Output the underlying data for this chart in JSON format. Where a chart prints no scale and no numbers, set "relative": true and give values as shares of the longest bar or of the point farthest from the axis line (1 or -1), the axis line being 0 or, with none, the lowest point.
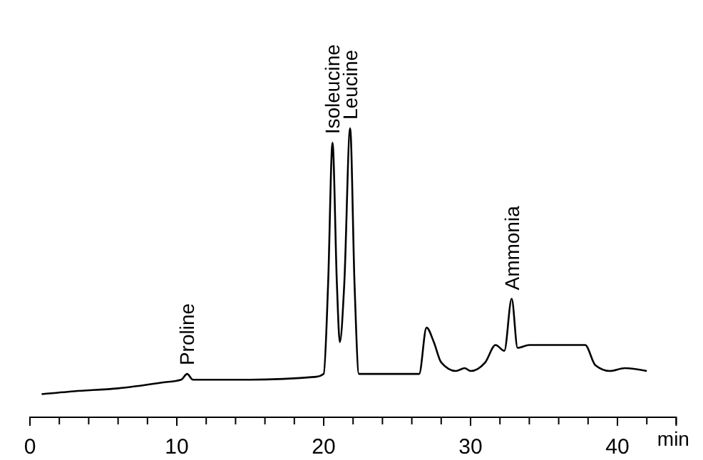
{
  "chart_data": {
    "type": "line",
    "relative": true,
    "xlabel": "min",
    "xlim": [
      0,
      44
    ],
    "xticks": [
      0,
      {
        "value": 2,
        "label": null
      },
      {
        "value": 4,
        "label": null
      },
      {
        "value": 6,
        "label": null
      },
      {
        "value": 8,
        "label": null
      },
      10,
      {
        "value": 12,
        "label": null
      },
      {
        "value": 14,
        "label": null
      },
      {
        "value": 16,
        "label": null
      },
      {
        "value": 18,
        "label": null
      },
      20,
      {
        "value": 22,
        "label": null
      },
      {
        "value": 24,
        "label": null
      },
      {
        "value": 26,
        "label": null
      },
      {
        "value": 28,
        "label": null
      },
      30,
      {
        "value": 32,
        "label": null
      },
      {
        "value": 34,
        "label": null
      },
      {
        "value": 36,
        "label": null
      },
      {
        "value": 38,
        "label": null
      },
      40,
      {
        "value": 42,
        "label": null
      },
      {
        "value": 44,
        "label": null
      }
    ],
    "tick_labels": "x",
    "grid": false,
    "marker": "none",
    "line_style": "solid",
    "x": [
      0.8,
      3,
      6,
      9,
      10.3,
      10.7,
      11.1,
      12,
      15,
      19.5,
      20,
      20.3,
      20.6,
      20.9,
      21.1,
      21.4,
      21.8,
      22.1,
      22.4,
      25,
      26.5,
      27,
      27.5,
      28,
      29,
      29.6,
      30,
      31,
      31.7,
      32.3,
      32.8,
      33.2,
      34,
      36,
      37.8,
      38.5,
      39.5,
      40.5,
      42
    ],
    "series": [
      {
        "color": "#000000",
        "values": [
          0.08,
          0.09,
          0.1,
          0.12,
          0.13,
          0.15,
          0.13,
          0.13,
          0.13,
          0.14,
          0.15,
          0.46,
          0.95,
          0.46,
          0.26,
          0.46,
          1,
          0.46,
          0.15,
          0.15,
          0.15,
          0.31,
          0.26,
          0.19,
          0.16,
          0.17,
          0.16,
          0.19,
          0.25,
          0.23,
          0.41,
          0.24,
          0.25,
          0.25,
          0.25,
          0.18,
          0.16,
          0.17,
          0.16
        ]
      }
    ],
    "annotations": [
      {
        "text": "Proline",
        "x": 10.7,
        "y": 0.15
      },
      {
        "text": "Isoleucine",
        "x": 20.6,
        "y": 0.95
      },
      {
        "text": "Leucine",
        "x": 21.8,
        "y": 1
      },
      {
        "text": "Ammonia",
        "x": 32.8,
        "y": 0.41
      }
    ]
  }
}
